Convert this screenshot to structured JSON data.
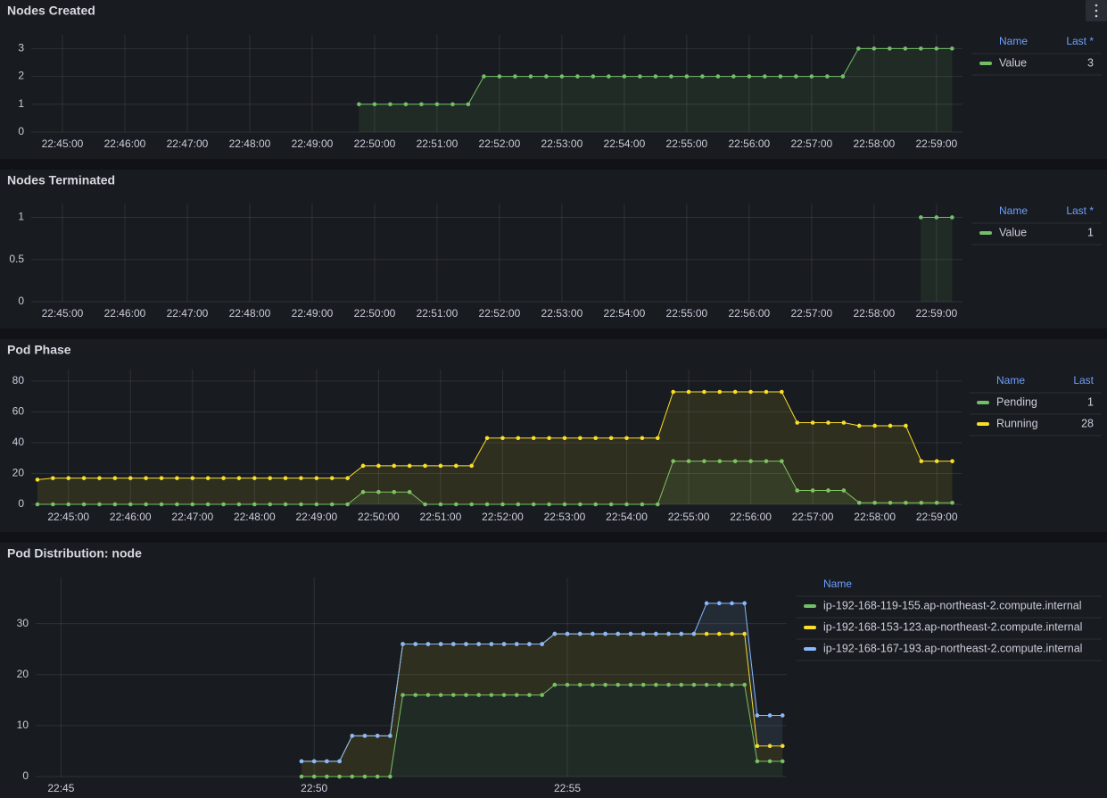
{
  "chart_data": [
    {
      "type": "line",
      "title": "Nodes Created",
      "stacked": false,
      "grid": true,
      "xlim": [
        "22:44:30",
        "22:59:25"
      ],
      "xticks": [
        "22:45:00",
        "22:46:00",
        "22:47:00",
        "22:48:00",
        "22:49:00",
        "22:50:00",
        "22:51:00",
        "22:52:00",
        "22:53:00",
        "22:54:00",
        "22:55:00",
        "22:56:00",
        "22:57:00",
        "22:58:00",
        "22:59:00"
      ],
      "ylim": [
        0,
        3.3
      ],
      "yticks": [
        0,
        1,
        2,
        3
      ],
      "legend_columns": [
        "Name",
        "Last *"
      ],
      "x": [
        "22:49:45",
        "22:50:00",
        "22:50:15",
        "22:50:30",
        "22:50:45",
        "22:51:00",
        "22:51:15",
        "22:51:30",
        "22:51:45",
        "22:52:00",
        "22:52:15",
        "22:52:30",
        "22:52:45",
        "22:53:00",
        "22:53:15",
        "22:53:30",
        "22:53:45",
        "22:54:00",
        "22:54:15",
        "22:54:30",
        "22:54:45",
        "22:55:00",
        "22:55:15",
        "22:55:30",
        "22:55:45",
        "22:56:00",
        "22:56:15",
        "22:56:30",
        "22:56:45",
        "22:57:00",
        "22:57:15",
        "22:57:30",
        "22:57:45",
        "22:58:00",
        "22:58:15",
        "22:58:30",
        "22:58:45",
        "22:59:00",
        "22:59:15"
      ],
      "series": [
        {
          "name": "Value",
          "color": "#73bf69",
          "last": 3,
          "values": [
            1,
            1,
            1,
            1,
            1,
            1,
            1,
            1,
            2,
            2,
            2,
            2,
            2,
            2,
            2,
            2,
            2,
            2,
            2,
            2,
            2,
            2,
            2,
            2,
            2,
            2,
            2,
            2,
            2,
            2,
            2,
            2,
            3,
            3,
            3,
            3,
            3,
            3,
            3
          ]
        }
      ]
    },
    {
      "type": "line",
      "title": "Nodes Terminated",
      "stacked": false,
      "grid": true,
      "xlim": [
        "22:44:30",
        "22:59:25"
      ],
      "xticks": [
        "22:45:00",
        "22:46:00",
        "22:47:00",
        "22:48:00",
        "22:49:00",
        "22:50:00",
        "22:51:00",
        "22:52:00",
        "22:53:00",
        "22:54:00",
        "22:55:00",
        "22:56:00",
        "22:57:00",
        "22:58:00",
        "22:59:00"
      ],
      "ylim": [
        0,
        1.1
      ],
      "yticks": [
        0,
        0.5,
        1
      ],
      "legend_columns": [
        "Name",
        "Last *"
      ],
      "x": [
        "22:58:45",
        "22:59:00",
        "22:59:15"
      ],
      "series": [
        {
          "name": "Value",
          "color": "#73bf69",
          "last": 1,
          "values": [
            1,
            1,
            1
          ]
        }
      ]
    },
    {
      "type": "line",
      "title": "Pod Phase",
      "stacked": false,
      "grid": true,
      "xlim": [
        "22:44:24",
        "22:59:24"
      ],
      "xticks": [
        "22:45:00",
        "22:46:00",
        "22:47:00",
        "22:48:00",
        "22:49:00",
        "22:50:00",
        "22:51:00",
        "22:52:00",
        "22:53:00",
        "22:54:00",
        "22:55:00",
        "22:56:00",
        "22:57:00",
        "22:58:00",
        "22:59:00"
      ],
      "ylim": [
        0,
        84
      ],
      "yticks": [
        0,
        20,
        40,
        60,
        80
      ],
      "legend_columns": [
        "Name",
        "Last"
      ],
      "x": [
        "22:44:30",
        "22:44:45",
        "22:45:00",
        "22:45:15",
        "22:45:30",
        "22:45:45",
        "22:46:00",
        "22:46:15",
        "22:46:30",
        "22:46:45",
        "22:47:00",
        "22:47:15",
        "22:47:30",
        "22:47:45",
        "22:48:00",
        "22:48:15",
        "22:48:30",
        "22:48:45",
        "22:49:00",
        "22:49:15",
        "22:49:30",
        "22:49:45",
        "22:50:00",
        "22:50:15",
        "22:50:30",
        "22:50:45",
        "22:51:00",
        "22:51:15",
        "22:51:30",
        "22:51:45",
        "22:52:00",
        "22:52:15",
        "22:52:30",
        "22:52:45",
        "22:53:00",
        "22:53:15",
        "22:53:30",
        "22:53:45",
        "22:54:00",
        "22:54:15",
        "22:54:30",
        "22:54:45",
        "22:55:00",
        "22:55:15",
        "22:55:30",
        "22:55:45",
        "22:56:00",
        "22:56:15",
        "22:56:30",
        "22:56:45",
        "22:57:00",
        "22:57:15",
        "22:57:30",
        "22:57:45",
        "22:58:00",
        "22:58:15",
        "22:58:30",
        "22:58:45",
        "22:59:00",
        "22:59:15"
      ],
      "series": [
        {
          "name": "Pending",
          "color": "#73bf69",
          "last": 1,
          "values": [
            0,
            0,
            0,
            0,
            0,
            0,
            0,
            0,
            0,
            0,
            0,
            0,
            0,
            0,
            0,
            0,
            0,
            0,
            0,
            0,
            0,
            8,
            8,
            8,
            8,
            0,
            0,
            0,
            0,
            0,
            0,
            0,
            0,
            0,
            0,
            0,
            0,
            0,
            0,
            0,
            0,
            28,
            28,
            28,
            28,
            28,
            28,
            28,
            28,
            9,
            9,
            9,
            9,
            1,
            1,
            1,
            1,
            1,
            1,
            1
          ]
        },
        {
          "name": "Running",
          "color": "#fade2a",
          "last": 28,
          "values": [
            16,
            17,
            17,
            17,
            17,
            17,
            17,
            17,
            17,
            17,
            17,
            17,
            17,
            17,
            17,
            17,
            17,
            17,
            17,
            17,
            17,
            25,
            25,
            25,
            25,
            25,
            25,
            25,
            25,
            43,
            43,
            43,
            43,
            43,
            43,
            43,
            43,
            43,
            43,
            43,
            43,
            73,
            73,
            73,
            73,
            73,
            73,
            73,
            73,
            53,
            53,
            53,
            53,
            51,
            51,
            51,
            51,
            28,
            28,
            28
          ]
        }
      ]
    },
    {
      "type": "line",
      "title": "Pod Distribution: node",
      "stacked": true,
      "grid": true,
      "xlim": [
        "22:44:30",
        "22:59:20"
      ],
      "xticks": [
        "22:45",
        "22:50",
        "22:55"
      ],
      "ylim": [
        0,
        38
      ],
      "yticks": [
        0,
        10,
        20,
        30
      ],
      "legend_columns": [
        "Name"
      ],
      "x": [
        "22:49:45",
        "22:50:00",
        "22:50:15",
        "22:50:30",
        "22:50:45",
        "22:51:00",
        "22:51:15",
        "22:51:30",
        "22:51:45",
        "22:52:00",
        "22:52:15",
        "22:52:30",
        "22:52:45",
        "22:53:00",
        "22:53:15",
        "22:53:30",
        "22:53:45",
        "22:54:00",
        "22:54:15",
        "22:54:30",
        "22:54:45",
        "22:55:00",
        "22:55:15",
        "22:55:30",
        "22:55:45",
        "22:56:00",
        "22:56:15",
        "22:56:30",
        "22:56:45",
        "22:57:00",
        "22:57:15",
        "22:57:30",
        "22:57:45",
        "22:58:00",
        "22:58:15",
        "22:58:30",
        "22:58:45",
        "22:59:00",
        "22:59:15"
      ],
      "series": [
        {
          "name": "ip-192-168-119-155.ap-northeast-2.compute.internal",
          "color": "#73bf69",
          "values": [
            0,
            0,
            0,
            0,
            0,
            0,
            0,
            0,
            16,
            16,
            16,
            16,
            16,
            16,
            16,
            16,
            16,
            16,
            16,
            16,
            18,
            18,
            18,
            18,
            18,
            18,
            18,
            18,
            18,
            18,
            18,
            18,
            18,
            18,
            18,
            18,
            3,
            3,
            3
          ]
        },
        {
          "name": "ip-192-168-153-123.ap-northeast-2.compute.internal",
          "color": "#fade2a",
          "values": [
            3,
            3,
            3,
            3,
            8,
            8,
            8,
            8,
            10,
            10,
            10,
            10,
            10,
            10,
            10,
            10,
            10,
            10,
            10,
            10,
            10,
            10,
            10,
            10,
            10,
            10,
            10,
            10,
            10,
            10,
            10,
            10,
            10,
            10,
            10,
            10,
            3,
            3,
            3
          ]
        },
        {
          "name": "ip-192-168-167-193.ap-northeast-2.compute.internal",
          "color": "#8ab8ff",
          "values": [
            0,
            0,
            0,
            0,
            0,
            0,
            0,
            0,
            0,
            0,
            0,
            0,
            0,
            0,
            0,
            0,
            0,
            0,
            0,
            0,
            0,
            0,
            0,
            0,
            0,
            0,
            0,
            0,
            0,
            0,
            0,
            0,
            6,
            6,
            6,
            6,
            6,
            6,
            6
          ]
        }
      ]
    }
  ]
}
